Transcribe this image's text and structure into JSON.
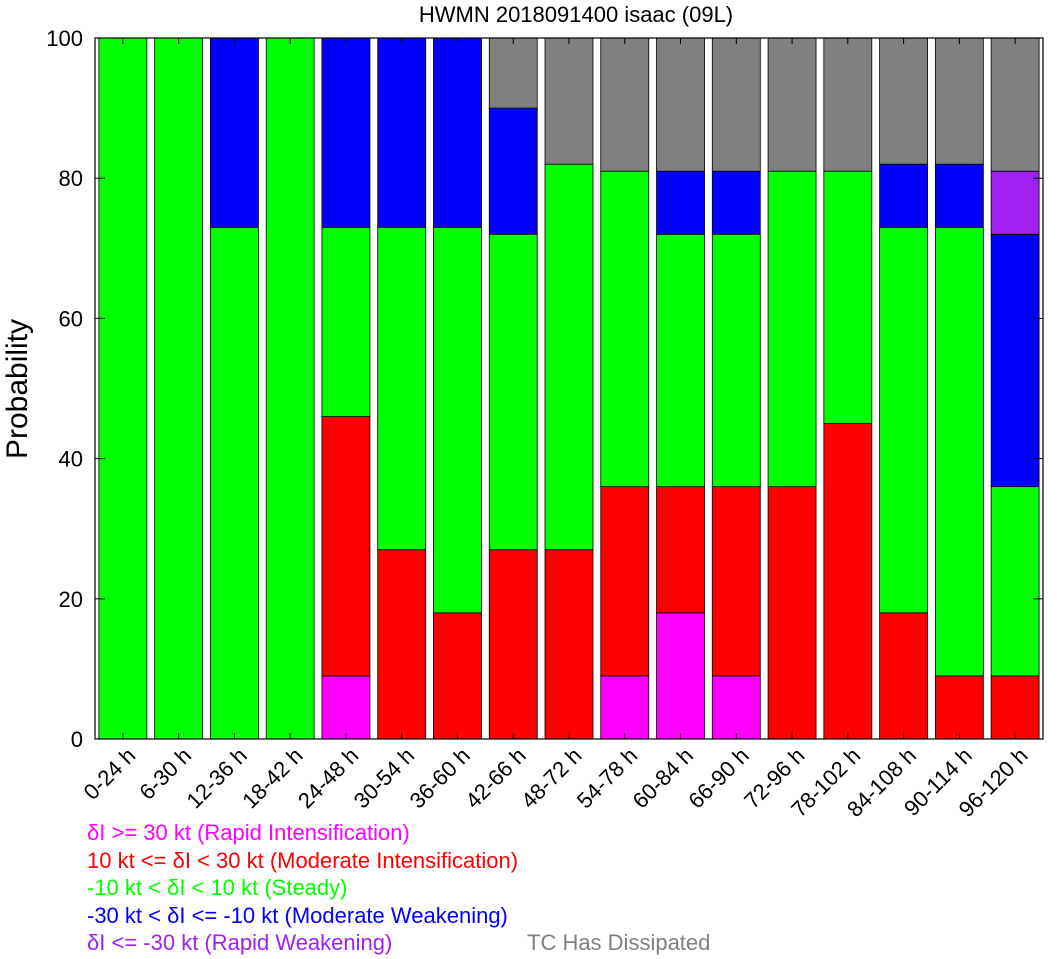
{
  "chart_data": {
    "type": "bar",
    "stacked": true,
    "title": "HWMN 2018091400 isaac (09L)",
    "xlabel": "",
    "ylabel": "Probability",
    "ylim": [
      0,
      100
    ],
    "yticks": [
      "0",
      "20",
      "40",
      "60",
      "80",
      "100"
    ],
    "grid": false,
    "categories": [
      "0-24 h",
      "6-30 h",
      "12-36 h",
      "18-42 h",
      "24-48 h",
      "30-54 h",
      "36-60 h",
      "42-66 h",
      "48-72 h",
      "54-78 h",
      "60-84 h",
      "66-90 h",
      "72-96 h",
      "78-102 h",
      "84-108 h",
      "90-114 h",
      "96-120 h"
    ],
    "series": [
      {
        "name": "δI >= 30 kt (Rapid Intensification)",
        "color": "#ff00ff",
        "values": [
          0,
          0,
          0,
          0,
          9,
          0,
          0,
          0,
          0,
          9,
          18,
          9,
          0,
          0,
          0,
          0,
          0
        ]
      },
      {
        "name": "10 kt <= δI < 30 kt (Moderate Intensification)",
        "color": "#ff0000",
        "values": [
          0,
          0,
          0,
          0,
          37,
          27,
          18,
          27,
          27,
          27,
          18,
          27,
          36,
          45,
          18,
          9,
          9
        ]
      },
      {
        "name": "-10 kt < δI < 10 kt (Steady)",
        "color": "#00ff00",
        "values": [
          100,
          100,
          73,
          100,
          27,
          46,
          55,
          45,
          55,
          45,
          36,
          36,
          45,
          36,
          55,
          64,
          27
        ]
      },
      {
        "name": "-30 kt < δI <= -10 kt (Moderate Weakening)",
        "color": "#0000ff",
        "values": [
          0,
          0,
          27,
          0,
          27,
          27,
          27,
          18,
          0,
          0,
          9,
          9,
          0,
          0,
          9,
          9,
          36
        ]
      },
      {
        "name": "δI <= -30 kt (Rapid Weakening)",
        "color": "#a020f0",
        "values": [
          0,
          0,
          0,
          0,
          0,
          0,
          0,
          0,
          0,
          0,
          0,
          0,
          0,
          0,
          0,
          0,
          9
        ]
      },
      {
        "name": "TC Has Dissipated",
        "color": "#808080",
        "values": [
          0,
          0,
          0,
          0,
          0,
          0,
          0,
          10,
          18,
          19,
          19,
          19,
          19,
          19,
          18,
          18,
          19
        ]
      }
    ]
  },
  "legend": {
    "ri": "δI >= 30 kt (Rapid Intensification)",
    "mi": "10 kt <= δI < 30 kt (Moderate Intensification)",
    "steady": "-10 kt < δI < 10 kt (Steady)",
    "mw": "-30 kt < δI <= -10 kt (Moderate Weakening)",
    "rw": "δI <= -30 kt (Rapid Weakening)",
    "dissipated": "TC Has Dissipated"
  }
}
